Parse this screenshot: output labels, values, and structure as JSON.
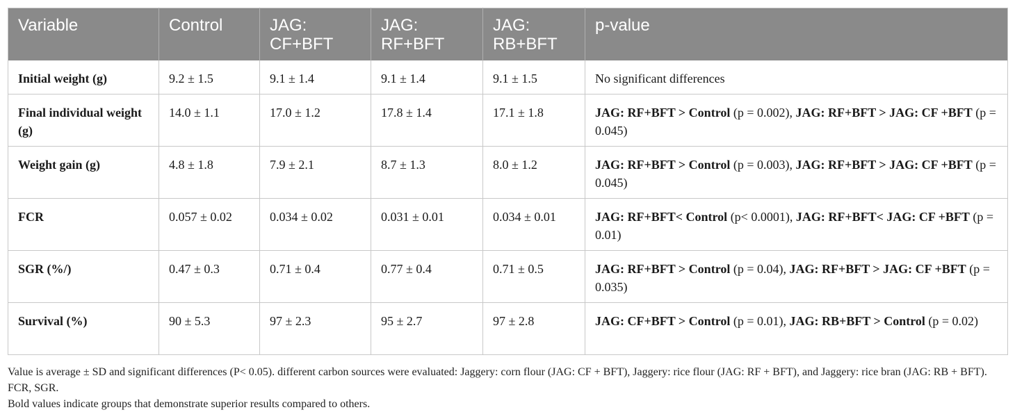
{
  "table": {
    "headers": [
      "Variable",
      "Control",
      "JAG: CF+BFT",
      "JAG: RF+BFT",
      "JAG: RB+BFT",
      "p-value"
    ],
    "rows": [
      {
        "variable": "Initial weight (g)",
        "control": "9.2 ± 1.5",
        "cf": "9.1 ± 1.4",
        "rf": "9.1 ± 1.4",
        "rb": "9.1 ± 1.5",
        "p": {
          "plain": "No significant differences"
        }
      },
      {
        "variable": "Final individual weight (g)",
        "control": "14.0 ± 1.1",
        "cf": "17.0 ± 1.2",
        "rf": "17.8 ± 1.4",
        "rb": "17.1 ± 1.8",
        "p": {
          "b1": "JAG: RF+BFT > Control",
          "t1": " (p = 0.002), ",
          "b2": "JAG: RF+BFT > JAG: CF +BFT",
          "t2": " (p = 0.045)"
        }
      },
      {
        "variable": "Weight gain (g)",
        "control": "4.8 ± 1.8",
        "cf": "7.9 ± 2.1",
        "rf": "8.7 ± 1.3",
        "rb": "8.0 ± 1.2",
        "p": {
          "b1": "JAG: RF+BFT > Control",
          "t1": " (p = 0.003), ",
          "b2": "JAG: RF+BFT > JAG: CF +BFT",
          "t2": " (p = 0.045)"
        }
      },
      {
        "variable": "FCR",
        "control": "0.057 ± 0.02",
        "cf": "0.034 ± 0.02",
        "rf": "0.031 ± 0.01",
        "rb": "0.034 ± 0.01",
        "p": {
          "b1": "JAG: RF+BFT< Control",
          "t1": " (p< 0.0001), ",
          "b2": "JAG: RF+BFT< JAG: CF +BFT",
          "t2": " (p = 0.01)"
        }
      },
      {
        "variable": "SGR (%/)",
        "control": "0.47 ± 0.3",
        "cf": "0.71 ± 0.4",
        "rf": "0.77 ± 0.4",
        "rb": "0.71 ± 0.5",
        "p": {
          "b1": "JAG: RF+BFT > Control",
          "t1": " (p = 0.04), ",
          "b2": "JAG: RF+BFT > JAG: CF +BFT",
          "t2": " (p = 0.035)"
        }
      },
      {
        "variable": "Survival (%)",
        "control": "90 ± 5.3",
        "cf": "97 ± 2.3",
        "rf": "95 ± 2.7",
        "rb": "97 ± 2.8",
        "p": {
          "b1": "JAG: CF+BFT > Control",
          "t1": " (p = 0.01), ",
          "b2": "JAG: RB+BFT > Control",
          "t2": " (p = 0.02)"
        }
      }
    ]
  },
  "notes": {
    "line1": "Value is average ± SD and significant differences (P< 0.05). different carbon sources were evaluated: Jaggery: corn flour (JAG: CF + BFT), Jaggery: rice flour (JAG: RF + BFT), and Jaggery: rice bran (JAG: RB + BFT). FCR, SGR.",
    "line2": "Bold values indicate groups that demonstrate superior results compared to others."
  }
}
